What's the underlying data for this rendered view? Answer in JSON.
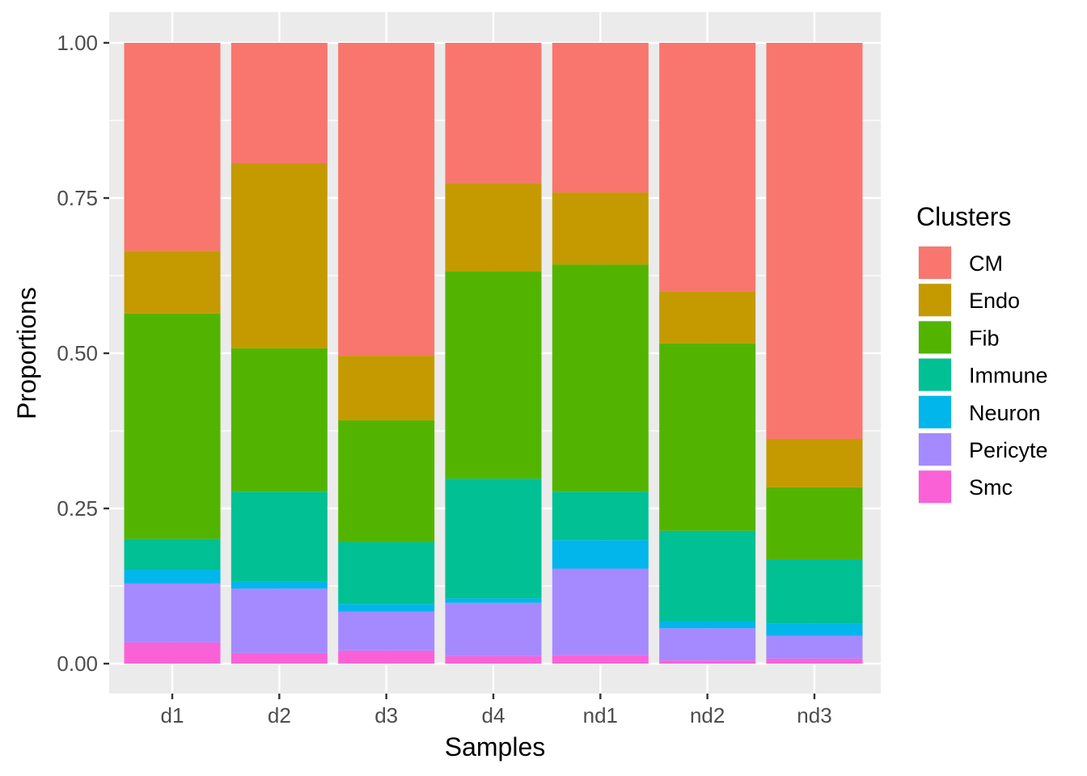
{
  "chart_data": {
    "type": "bar",
    "stacked": true,
    "categories": [
      "d1",
      "d2",
      "d3",
      "d4",
      "nd1",
      "nd2",
      "nd3"
    ],
    "xlabel": "Samples",
    "ylabel": "Proportions",
    "ylim": [
      0,
      1
    ],
    "yticks": [
      "0.00",
      "0.25",
      "0.50",
      "0.75",
      "1.00"
    ],
    "legend": {
      "title": "Clusters",
      "position": "right"
    },
    "series": [
      {
        "name": "Smc",
        "color": "#FB61D7",
        "values": [
          0.034,
          0.017,
          0.021,
          0.012,
          0.014,
          0.005,
          0.008
        ]
      },
      {
        "name": "Pericyte",
        "color": "#A58AFF",
        "values": [
          0.095,
          0.104,
          0.063,
          0.086,
          0.139,
          0.052,
          0.037
        ]
      },
      {
        "name": "Neuron",
        "color": "#00B6EB",
        "values": [
          0.022,
          0.011,
          0.012,
          0.007,
          0.046,
          0.012,
          0.019
        ]
      },
      {
        "name": "Immune",
        "color": "#00C094",
        "values": [
          0.05,
          0.145,
          0.1,
          0.193,
          0.078,
          0.145,
          0.104
        ]
      },
      {
        "name": "Fib",
        "color": "#53B400",
        "values": [
          0.363,
          0.231,
          0.196,
          0.334,
          0.366,
          0.302,
          0.116
        ]
      },
      {
        "name": "Endo",
        "color": "#C49A00",
        "values": [
          0.101,
          0.298,
          0.104,
          0.142,
          0.116,
          0.084,
          0.078
        ]
      },
      {
        "name": "CM",
        "color": "#F8766D",
        "values": [
          0.335,
          0.194,
          0.504,
          0.226,
          0.241,
          0.4,
          0.638
        ]
      }
    ],
    "legend_order": [
      "CM",
      "Endo",
      "Fib",
      "Immune",
      "Neuron",
      "Pericyte",
      "Smc"
    ],
    "panel_background": "#EBEBEB",
    "grid": true
  }
}
